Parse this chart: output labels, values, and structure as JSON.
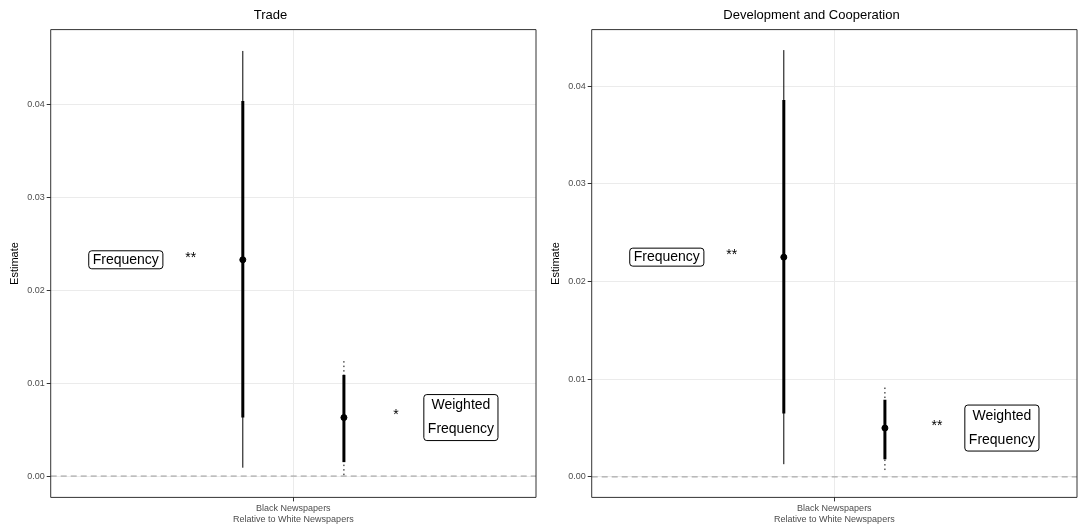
{
  "chart_data": [
    {
      "type": "scatter",
      "title": "Trade",
      "ylabel": "Estimate",
      "categories": [
        "Black Newspapers\nRelative to White Newspapers"
      ],
      "ylim": [
        -0.0023,
        0.0481
      ],
      "yticks": [
        {
          "value": 0,
          "label": "0.00"
        },
        {
          "value": 0.01,
          "label": "0.01"
        },
        {
          "value": 0.02,
          "label": "0.02"
        },
        {
          "value": 0.03,
          "label": "0.03"
        },
        {
          "value": 0.04,
          "label": "0.04"
        }
      ],
      "grid": true,
      "legend": false,
      "marker": "circle",
      "annotations": [
        "**",
        "*"
      ],
      "ref_lines": [
        {
          "axis": "y",
          "value": 0,
          "color": "#999999",
          "line_style": "dashed"
        }
      ],
      "series": [
        {
          "type": "bar",
          "color": "#000000",
          "values": [
            0.0341
          ],
          "base": [
            0.0063
          ]
        },
        {
          "name": "Frequency",
          "color": "#000000",
          "line_style": "solid",
          "values": [
            0.0233
          ],
          "errors": [
            [
              0.0009,
              0.0458
            ]
          ]
        },
        {
          "type": "bar",
          "color": "#000000",
          "values": [
            0.0094
          ],
          "base": [
            0.0015
          ]
        },
        {
          "name": "Weighted Frequency",
          "color": "#000000",
          "line_style": "dotted",
          "values": [
            0.0063
          ],
          "errors": [
            [
              0.0001,
              0.0126
            ]
          ]
        }
      ]
    },
    {
      "type": "scatter",
      "title": "Development and Cooperation",
      "ylabel": "Estimate",
      "categories": [
        "Black Newspapers\nRelative to White Newspapers"
      ],
      "ylim": [
        -0.0021,
        0.0458
      ],
      "yticks": [
        {
          "value": 0,
          "label": "0.00"
        },
        {
          "value": 0.01,
          "label": "0.01"
        },
        {
          "value": 0.02,
          "label": "0.02"
        },
        {
          "value": 0.03,
          "label": "0.03"
        },
        {
          "value": 0.04,
          "label": "0.04"
        }
      ],
      "grid": true,
      "legend": false,
      "marker": "circle",
      "annotations": [
        "**",
        "**"
      ],
      "ref_lines": [
        {
          "axis": "y",
          "value": 0,
          "color": "#999999",
          "line_style": "dashed"
        }
      ],
      "series": [
        {
          "type": "bar",
          "color": "#000000",
          "values": [
            0.0321
          ],
          "base": [
            0.0065
          ]
        },
        {
          "name": "Frequency",
          "color": "#000000",
          "line_style": "solid",
          "values": [
            0.0225
          ],
          "errors": [
            [
              0.0013,
              0.0437
            ]
          ]
        },
        {
          "type": "bar",
          "color": "#000000",
          "values": [
            0.0061
          ],
          "base": [
            0.0018
          ]
        },
        {
          "name": "Weighted Frequency",
          "color": "#000000",
          "line_style": "dotted",
          "values": [
            0.005
          ],
          "errors": [
            [
              0.0007,
              0.0092
            ]
          ]
        }
      ]
    }
  ]
}
